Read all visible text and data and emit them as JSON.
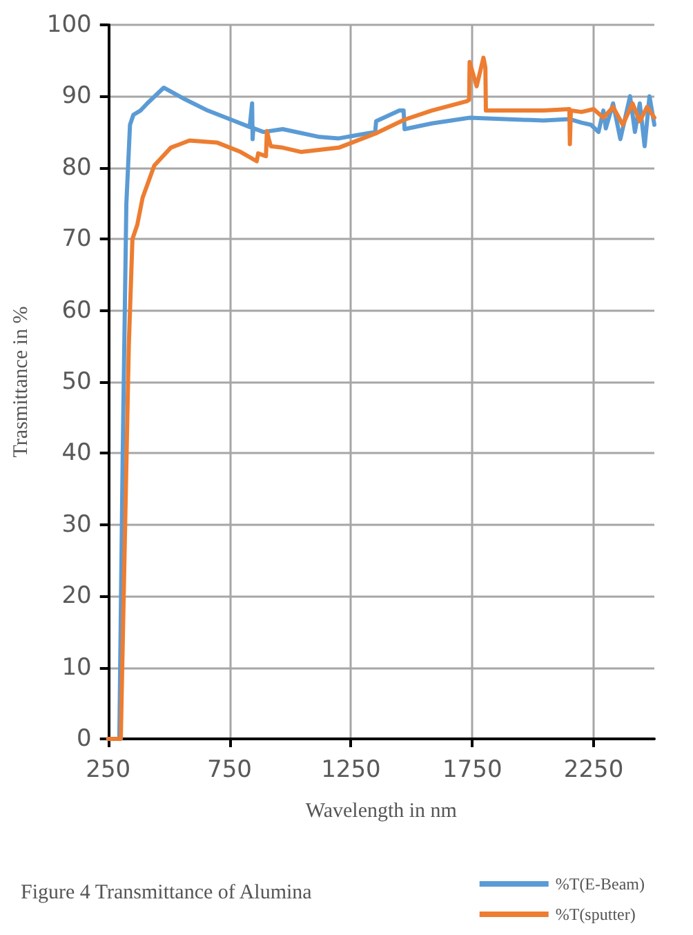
{
  "chart_data": {
    "type": "line",
    "title": "Figure 4 Transmittance of Alumina",
    "xlabel": "Wavelength in nm",
    "ylabel": "Trasmittance in %",
    "xlim": [
      250,
      2500
    ],
    "xticks": [
      250,
      750,
      1250,
      1750,
      2250
    ],
    "ylim": [
      0,
      100
    ],
    "yticks": [
      0,
      10,
      20,
      30,
      40,
      50,
      60,
      70,
      80,
      90,
      100
    ],
    "grid": true,
    "legend": "bottom right",
    "marker": "none",
    "line_style": "solid",
    "series": [
      {
        "name": "%T(E-Beam)",
        "color": "#5b9bd5",
        "x": [
          250,
          290,
          296,
          310,
          325,
          340,
          354,
          383,
          411,
          479,
          565,
          660,
          758,
          833,
          843,
          845,
          847,
          850,
          890,
          969,
          1121,
          1200,
          1316,
          1350,
          1354,
          1450,
          1467,
          1471,
          1583,
          1739,
          2044,
          2150,
          2200,
          2239,
          2270,
          2290,
          2300,
          2330,
          2360,
          2400,
          2420,
          2440,
          2460,
          2480,
          2500
        ],
        "values": [
          0,
          0,
          0,
          40,
          75,
          86,
          87.4,
          88,
          89,
          91.2,
          89.6,
          88,
          86.7,
          85.7,
          89,
          84,
          85,
          85.5,
          85,
          85.4,
          84.3,
          84.1,
          84.8,
          85,
          86.5,
          88,
          88,
          85.4,
          86.2,
          87,
          86.6,
          86.8,
          86.3,
          86,
          85,
          88,
          85.5,
          89,
          84,
          90,
          85,
          89,
          83,
          90,
          86
        ]
      },
      {
        "name": "%T(sputter)",
        "color": "#ed7d31",
        "x": [
          250,
          290,
          302,
          320,
          335,
          350,
          370,
          392,
          440,
          508,
          585,
          700,
          796,
          862,
          868,
          900,
          904,
          912,
          920,
          969,
          1046,
          1200,
          1352,
          1469,
          1583,
          1727,
          1737,
          1739,
          1768,
          1796,
          1804,
          1806,
          2044,
          2150,
          2152,
          2156,
          2200,
          2250,
          2290,
          2330,
          2370,
          2410,
          2440,
          2470,
          2500
        ],
        "values": [
          0,
          0,
          0,
          30,
          55,
          70,
          72,
          75.8,
          80.3,
          82.8,
          83.8,
          83.5,
          82.2,
          80.9,
          82,
          81.6,
          85.1,
          84,
          83,
          82.8,
          82.2,
          82.8,
          84.8,
          86.7,
          88,
          89.3,
          89.5,
          94.8,
          91.4,
          95.4,
          94,
          88,
          88,
          88.2,
          83.3,
          88,
          87.8,
          88.2,
          87,
          88.5,
          86,
          89,
          86.5,
          88.5,
          87
        ]
      }
    ]
  }
}
